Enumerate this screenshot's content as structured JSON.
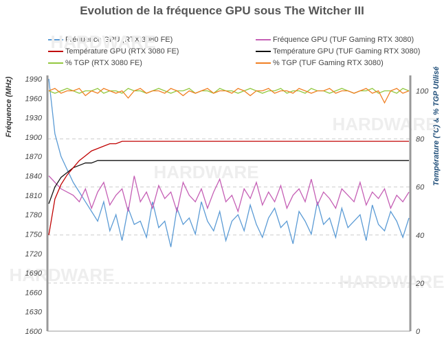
{
  "chart_data": {
    "type": "line",
    "title": "Evolution de la fréquence GPU sous The Witcher III",
    "ylabel_left": "Fréquence (MHz)",
    "ylabel_right": "Température (°C) & % TGP Utilisé",
    "ylim_left": [
      1600,
      1990
    ],
    "yticks_left": [
      1600,
      1630,
      1660,
      1690,
      1720,
      1750,
      1780,
      1810,
      1840,
      1870,
      1900,
      1930,
      1960,
      1990
    ],
    "ylim_right": [
      0,
      105
    ],
    "yticks_right": [
      0,
      20,
      40,
      60,
      80,
      100
    ],
    "grid": "dashed horizontal at right-axis ticks",
    "legend": "top",
    "watermark": "Le COMPTOIR du HARDWARE",
    "series": [
      {
        "name": "Fréquence GPU (RTX 3080 FE)",
        "axis": "left",
        "color": "#5b9bd5",
        "values": [
          1990,
          1905,
          1870,
          1850,
          1830,
          1815,
          1800,
          1785,
          1770,
          1800,
          1755,
          1780,
          1740,
          1790,
          1765,
          1770,
          1745,
          1800,
          1760,
          1770,
          1730,
          1790,
          1765,
          1775,
          1750,
          1800,
          1770,
          1755,
          1785,
          1740,
          1770,
          1780,
          1755,
          1795,
          1765,
          1745,
          1775,
          1790,
          1760,
          1770,
          1735,
          1785,
          1770,
          1750,
          1800,
          1765,
          1775,
          1745,
          1790,
          1760,
          1770,
          1780,
          1740,
          1795,
          1765,
          1755,
          1785,
          1770,
          1745,
          1775
        ]
      },
      {
        "name": "Fréquence GPU (TUF Gaming RTX 3080)",
        "axis": "left",
        "color": "#c55fb5",
        "values": [
          1840,
          1830,
          1820,
          1815,
          1810,
          1800,
          1820,
          1790,
          1815,
          1830,
          1795,
          1810,
          1820,
          1785,
          1840,
          1800,
          1815,
          1790,
          1825,
          1805,
          1815,
          1785,
          1830,
          1810,
          1800,
          1820,
          1790,
          1815,
          1835,
          1800,
          1810,
          1785,
          1820,
          1805,
          1830,
          1795,
          1815,
          1800,
          1825,
          1790,
          1810,
          1820,
          1800,
          1835,
          1795,
          1815,
          1805,
          1790,
          1820,
          1810,
          1800,
          1830,
          1795,
          1815,
          1805,
          1820,
          1790,
          1810,
          1800,
          1815
        ]
      },
      {
        "name": "Température GPU (RTX 3080 FE)",
        "axis": "right",
        "color": "#c00000",
        "values": [
          40,
          55,
          61,
          65,
          68,
          71,
          73,
          75,
          76,
          77,
          78,
          78,
          79,
          79,
          79,
          79,
          79,
          79,
          79,
          79,
          79,
          79,
          79,
          79,
          79,
          79,
          79,
          79,
          79,
          79,
          79,
          79,
          79,
          79,
          79,
          79,
          79,
          79,
          79,
          79,
          79,
          79,
          79,
          79,
          79,
          79,
          79,
          79,
          79,
          79,
          79,
          79,
          79,
          79,
          79,
          79,
          79,
          79,
          79,
          79
        ]
      },
      {
        "name": "Température GPU (TUF Gaming RTX 3080)",
        "axis": "right",
        "color": "#111111",
        "values": [
          53,
          60,
          64,
          66,
          68,
          69,
          70,
          70,
          71,
          71,
          71,
          71,
          71,
          71,
          71,
          71,
          71,
          71,
          71,
          71,
          71,
          71,
          71,
          71,
          71,
          71,
          71,
          71,
          71,
          71,
          71,
          71,
          71,
          71,
          71,
          71,
          71,
          71,
          71,
          71,
          71,
          71,
          71,
          71,
          71,
          71,
          71,
          71,
          71,
          71,
          71,
          71,
          71,
          71,
          71,
          71,
          71,
          71,
          71,
          71
        ]
      },
      {
        "name": "% TGP (RTX 3080 FE)",
        "axis": "right",
        "color": "#92c83e",
        "values": [
          100,
          99,
          100,
          101,
          100,
          99,
          100,
          100,
          101,
          99,
          100,
          100,
          99,
          101,
          100,
          100,
          99,
          100,
          101,
          100,
          99,
          100,
          100,
          101,
          99,
          100,
          100,
          99,
          101,
          100,
          100,
          99,
          100,
          101,
          100,
          99,
          100,
          100,
          101,
          99,
          100,
          100,
          99,
          101,
          100,
          100,
          99,
          100,
          101,
          100,
          99,
          100,
          100,
          101,
          99,
          100,
          100,
          99,
          101,
          100
        ]
      },
      {
        "name": "% TGP (TUF Gaming RTX 3080)",
        "axis": "right",
        "color": "#f07f22",
        "values": [
          100,
          101,
          99,
          100,
          100,
          101,
          98,
          100,
          99,
          101,
          100,
          99,
          100,
          97,
          100,
          101,
          99,
          100,
          100,
          99,
          101,
          100,
          98,
          100,
          99,
          100,
          101,
          99,
          100,
          100,
          99,
          101,
          100,
          98,
          100,
          100,
          101,
          99,
          100,
          100,
          99,
          101,
          100,
          99,
          100,
          100,
          101,
          99,
          100,
          100,
          99,
          100,
          101,
          99,
          100,
          95,
          100,
          101,
          99,
          100
        ]
      }
    ]
  }
}
